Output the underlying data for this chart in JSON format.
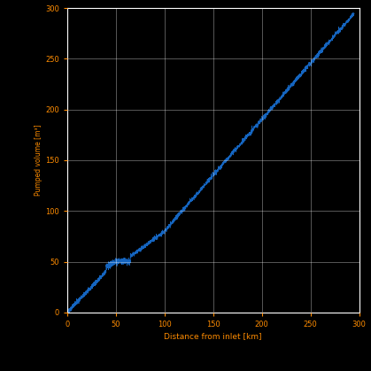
{
  "title": "",
  "xlabel": "Distance from inlet [km]",
  "ylabel": "Pumped volume [m³]",
  "xlim": [
    0,
    300
  ],
  "ylim": [
    0,
    300
  ],
  "xticks": [
    0,
    50,
    100,
    150,
    200,
    250,
    300
  ],
  "yticks": [
    0,
    50,
    100,
    150,
    200,
    250,
    300
  ],
  "background_color": "#000000",
  "axes_color": "#000000",
  "line_color": "#1565c0",
  "grid_color": "#ffffff",
  "tick_color": "#ff8c00",
  "label_color": "#ff8c00",
  "figsize": [
    4.19,
    4.19
  ],
  "dpi": 100
}
